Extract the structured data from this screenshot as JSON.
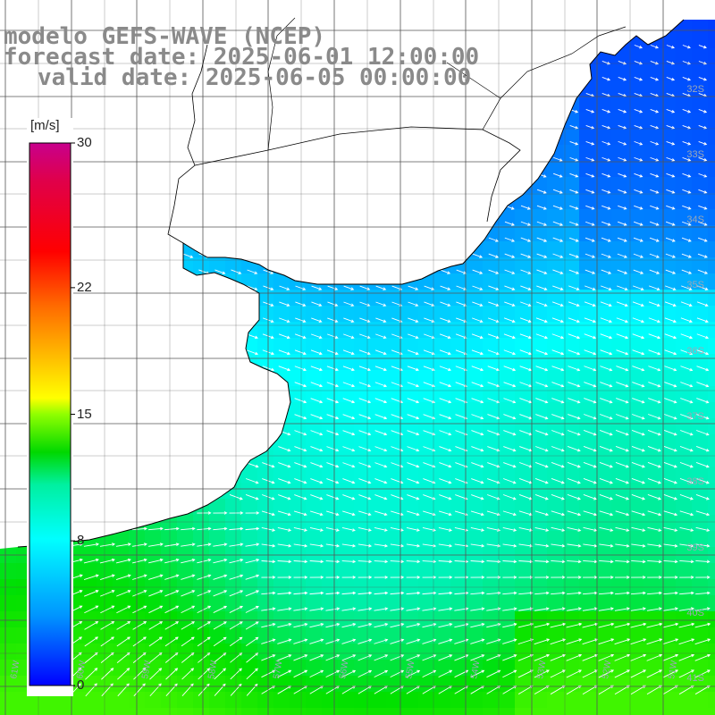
{
  "header": {
    "model": "modelo GEFS-WAVE (NCEP)",
    "forecast": "forecast date: 2025-06-01 12:00:00",
    "valid": "valid date: 2025-06-05 00:00:00"
  },
  "colorbar": {
    "unit": "[m/s]",
    "min": 0,
    "max": 30,
    "ticks": [
      "30",
      "22",
      "15",
      "8",
      "0"
    ],
    "tick_values": [
      30,
      22,
      15,
      8,
      0
    ],
    "colors": [
      "#0000ff",
      "#00c8ff",
      "#00ffff",
      "#00e000",
      "#00cc00",
      "#ffff00",
      "#ff9900",
      "#ff0000",
      "#c8008c"
    ]
  },
  "map": {
    "lat_labels": [
      "32S",
      "33S",
      "34S",
      "35S",
      "36S",
      "37S",
      "38S",
      "39S",
      "40S",
      "41S"
    ],
    "lon_labels": [
      "61W",
      "60W",
      "59W",
      "58W",
      "57W",
      "56W",
      "55W",
      "54W",
      "53W",
      "52W",
      "51W"
    ],
    "land_color": "#ffffff",
    "grid_color": "#555555",
    "coast_color": "#000000",
    "arrow_color": "#ffffff"
  }
}
